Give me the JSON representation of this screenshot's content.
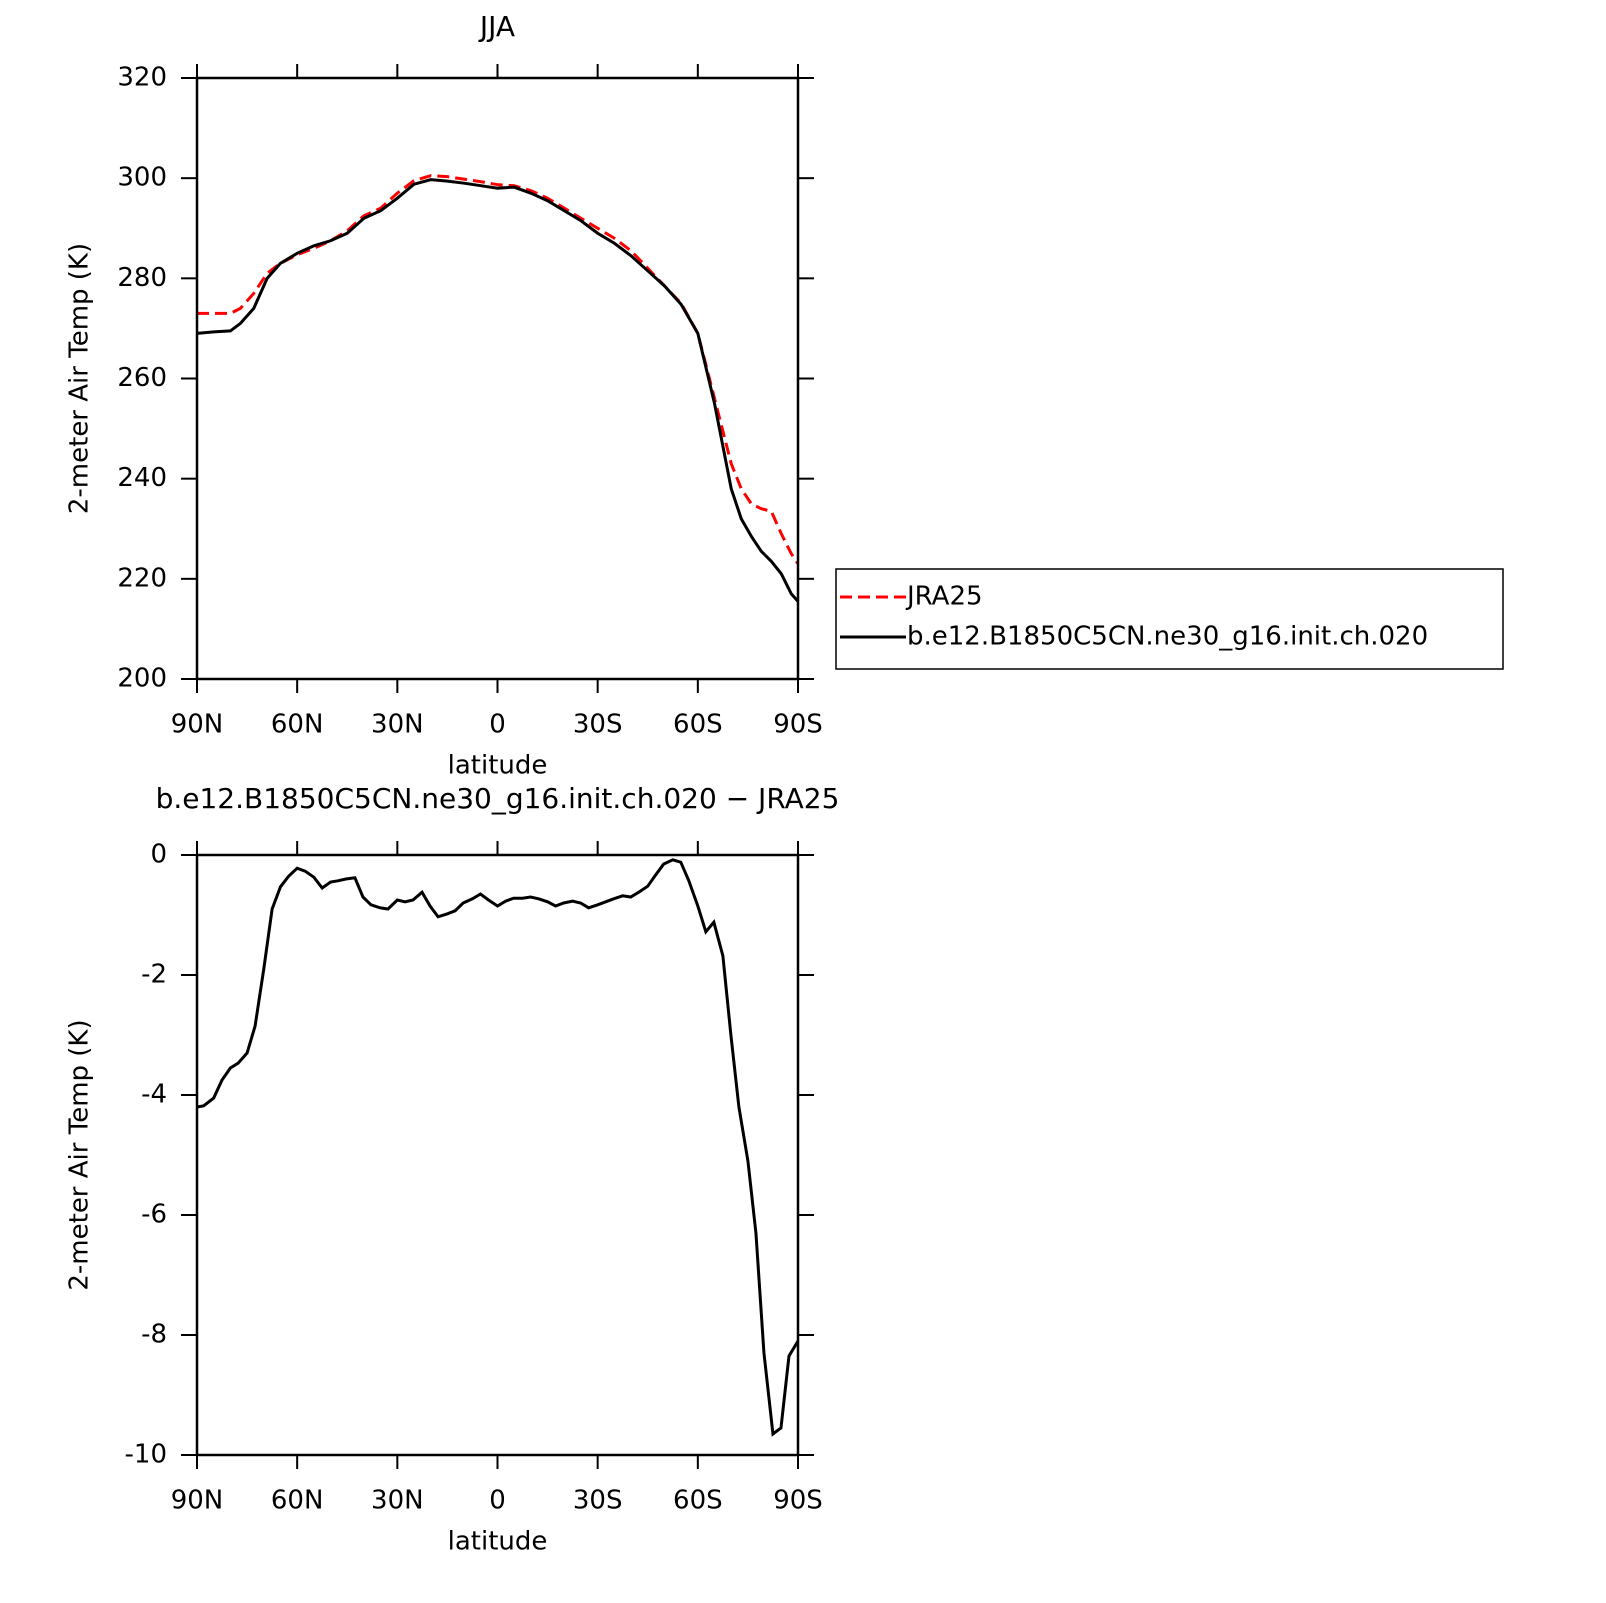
{
  "chart_data": [
    {
      "type": "line",
      "title": "JJA",
      "xlabel": "latitude",
      "ylabel": "2-meter Air Temp (K)",
      "x": [
        90,
        85,
        80,
        77,
        73,
        69,
        65,
        60,
        55,
        50,
        45,
        40,
        35,
        30,
        25,
        20,
        15,
        10,
        5,
        0,
        -5,
        -10,
        -15,
        -20,
        -25,
        -30,
        -35,
        -40,
        -45,
        -50,
        -55,
        -60,
        -65,
        -70,
        -73,
        -76,
        -79,
        -82,
        -85,
        -88,
        -90
      ],
      "series": [
        {
          "name": "JRA25",
          "color": "#ff0000",
          "linestyle": "dashed",
          "values": [
            273,
            273,
            273,
            274,
            277,
            281,
            283,
            284.7,
            286,
            287.5,
            289.5,
            292.5,
            294,
            297,
            299.5,
            300.5,
            300.3,
            299.8,
            299.3,
            298.7,
            298.5,
            297.5,
            296,
            294,
            292,
            290,
            288,
            285.5,
            282,
            278.5,
            275,
            269,
            256,
            243,
            238,
            235,
            234,
            233.5,
            229,
            225,
            223
          ]
        },
        {
          "name": "b.e12.B1850C5CN.ne30_g16.init.ch.020",
          "color": "#000000",
          "linestyle": "solid",
          "values": [
            269,
            269.3,
            269.5,
            271,
            274,
            280,
            283,
            285,
            286.5,
            287.5,
            289,
            292,
            293.5,
            296,
            298.8,
            299.7,
            299.4,
            299,
            298.5,
            298,
            298.2,
            297,
            295.5,
            293.5,
            291.5,
            289,
            287,
            284.5,
            281.5,
            278.5,
            274.8,
            269,
            255,
            238,
            232,
            228.5,
            225.5,
            223.5,
            221,
            217,
            215.5
          ]
        }
      ],
      "xlim": [
        90,
        -90
      ],
      "ylim": [
        200,
        320
      ],
      "xticks": [
        {
          "value": 90,
          "label": "90N"
        },
        {
          "value": 60,
          "label": "60N"
        },
        {
          "value": 30,
          "label": "30N"
        },
        0,
        {
          "value": -30,
          "label": "30S"
        },
        {
          "value": -60,
          "label": "60S"
        },
        {
          "value": -90,
          "label": "90S"
        }
      ],
      "yticks": [
        200,
        220,
        240,
        260,
        280,
        300,
        320
      ],
      "legend": "right"
    },
    {
      "type": "line",
      "title": "b.e12.B1850C5CN.ne30_g16.init.ch.020 − JRA25",
      "xlabel": "latitude",
      "ylabel": "2-meter Air Temp (K)",
      "x": [
        90,
        88,
        85,
        82.5,
        80,
        77.7,
        75,
        72.6,
        70,
        67.5,
        65,
        62.5,
        60,
        57.6,
        55,
        52.5,
        50,
        47.8,
        45.4,
        42.7,
        40.3,
        37.9,
        35.2,
        32.8,
        30,
        27.7,
        25.3,
        22.6,
        20.2,
        17.8,
        15,
        12.7,
        10.3,
        7.5,
        5.1,
        2.7,
        0,
        -2.4,
        -4.8,
        -7.5,
        -9.9,
        -12.3,
        -15,
        -17.4,
        -19.8,
        -22.5,
        -24.9,
        -27.3,
        -30,
        -32.4,
        -34.8,
        -37.5,
        -39.9,
        -42.3,
        -45,
        -47.4,
        -49.8,
        -52.5,
        -54.9,
        -57.3,
        -60,
        -62.4,
        -64.8,
        -67.5,
        -69.9,
        -72.3,
        -75,
        -77.4,
        -79.8,
        -82.5,
        -84.9,
        -87.3,
        -90
      ],
      "series": [
        {
          "color": "#000000",
          "linestyle": "solid",
          "values": [
            -4.2,
            -4.18,
            -4.05,
            -3.75,
            -3.55,
            -3.47,
            -3.3,
            -2.85,
            -1.9,
            -0.9,
            -0.53,
            -0.35,
            -0.22,
            -0.27,
            -0.37,
            -0.55,
            -0.45,
            -0.43,
            -0.4,
            -0.38,
            -0.7,
            -0.83,
            -0.88,
            -0.9,
            -0.75,
            -0.78,
            -0.75,
            -0.62,
            -0.85,
            -1.03,
            -0.98,
            -0.93,
            -0.8,
            -0.73,
            -0.65,
            -0.75,
            -0.85,
            -0.77,
            -0.72,
            -0.72,
            -0.7,
            -0.73,
            -0.78,
            -0.85,
            -0.8,
            -0.77,
            -0.8,
            -0.88,
            -0.83,
            -0.78,
            -0.73,
            -0.68,
            -0.7,
            -0.62,
            -0.52,
            -0.33,
            -0.15,
            -0.08,
            -0.12,
            -0.43,
            -0.85,
            -1.28,
            -1.12,
            -1.68,
            -3.0,
            -4.2,
            -5.1,
            -6.3,
            -8.3,
            -9.65,
            -9.55,
            -8.35,
            -8.1
          ]
        }
      ],
      "xlim": [
        90,
        -90
      ],
      "ylim": [
        -10,
        0
      ],
      "xticks": [
        {
          "value": 90,
          "label": "90N"
        },
        {
          "value": 60,
          "label": "60N"
        },
        {
          "value": 30,
          "label": "30N"
        },
        0,
        {
          "value": -30,
          "label": "30S"
        },
        {
          "value": -60,
          "label": "60S"
        },
        {
          "value": -90,
          "label": "90S"
        }
      ],
      "yticks": [
        -10,
        -8,
        -6,
        -4,
        -2,
        0
      ]
    }
  ]
}
